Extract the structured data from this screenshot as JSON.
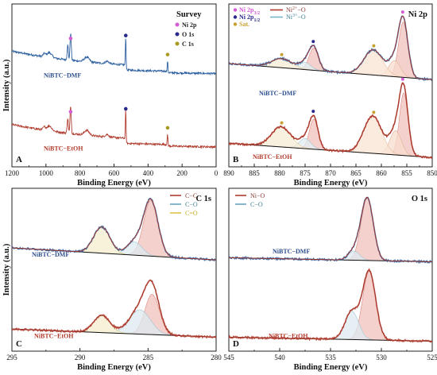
{
  "chart_data": [
    {
      "type": "line",
      "panel": "A",
      "title": "Survey",
      "xlabel": "Binding Energy (eV)",
      "ylabel": "Intensity (a.u.)",
      "xlim": [
        1200,
        0
      ],
      "xticks": [
        1200,
        1000,
        800,
        600,
        400,
        200,
        0
      ],
      "legend": [
        {
          "label": "Ni 2p",
          "color": "#d45bd4"
        },
        {
          "label": "O 1s",
          "color": "#2b2a8c"
        },
        {
          "label": "C 1s",
          "color": "#a89a1e"
        }
      ],
      "markers": [
        {
          "series": 0,
          "x": 855,
          "color": "#d45bd4"
        },
        {
          "series": 0,
          "x": 531,
          "color": "#2b2a8c"
        },
        {
          "series": 0,
          "x": 285,
          "color": "#a89a1e"
        },
        {
          "series": 1,
          "x": 855,
          "color": "#d45bd4"
        },
        {
          "series": 1,
          "x": 531,
          "color": "#2b2a8c"
        },
        {
          "series": 1,
          "x": 285,
          "color": "#a89a1e"
        }
      ],
      "series": [
        {
          "name": "NiBTC−DMF",
          "color": "#2c5fa0",
          "offset": 1.0
        },
        {
          "name": "NiBTC−EtOH",
          "color": "#b13c2e",
          "offset": 0.0
        }
      ]
    },
    {
      "type": "line",
      "panel": "B",
      "title": "Ni 2p",
      "xlabel": "Binding Energy (eV)",
      "ylabel": "",
      "xlim": [
        890,
        850
      ],
      "xticks": [
        890,
        885,
        880,
        875,
        870,
        865,
        860,
        855,
        850
      ],
      "legend": [
        {
          "label": "Ni 2p",
          "sub": "3/2",
          "color": "#d45bd4",
          "marker": "dot"
        },
        {
          "label": "Ni 2p",
          "sub": "1/2",
          "color": "#2b2a8c",
          "marker": "dot"
        },
        {
          "label": "Sat.",
          "color": "#c8a032",
          "marker": "dot"
        },
        {
          "label": "Ni",
          "sup": "2+",
          "tail": "−O",
          "color": "#b13c2e",
          "marker": "line"
        },
        {
          "label": "Ni",
          "sup": "3+",
          "tail": "−O",
          "color": "#7ab6c9",
          "marker": "line"
        }
      ],
      "markers": [
        {
          "series": 0,
          "x": 855.8,
          "color": "#d45bd4"
        },
        {
          "series": 0,
          "x": 873.4,
          "color": "#2b2a8c"
        },
        {
          "series": 0,
          "x": 861.5,
          "color": "#c8a032"
        },
        {
          "series": 0,
          "x": 879.6,
          "color": "#c8a032"
        },
        {
          "series": 1,
          "x": 855.8,
          "color": "#d45bd4"
        },
        {
          "series": 1,
          "x": 873.4,
          "color": "#2b2a8c"
        },
        {
          "series": 1,
          "x": 861.5,
          "color": "#c8a032"
        },
        {
          "series": 1,
          "x": 879.6,
          "color": "#c8a032"
        }
      ],
      "series": [
        {
          "name": "NiBTC−DMF",
          "color": "#2c5fa0",
          "baseline": [
            [
              890,
              0.3
            ],
            [
              850,
              0.14
            ]
          ],
          "peaks": [
            {
              "label": "Ni2+−O",
              "center": 855.7,
              "height": 0.55,
              "width": 1.3,
              "fill": "#f2c2bd",
              "stroke": "#d98a80"
            },
            {
              "label": "Ni3+−O",
              "center": 857.4,
              "height": 0.16,
              "width": 1.6,
              "fill": "#f7dccc",
              "stroke": "#e0b39a"
            },
            {
              "label": "Sat.",
              "center": 861.6,
              "height": 0.25,
              "width": 2.6,
              "fill": "#f9e4d4",
              "stroke": "#e4bfa0"
            },
            {
              "label": "Ni2+−O",
              "center": 873.3,
              "height": 0.22,
              "width": 1.3,
              "fill": "#f2c2bd",
              "stroke": "#d98a80"
            },
            {
              "label": "Ni3+−O",
              "center": 875.0,
              "height": 0.07,
              "width": 1.6,
              "fill": "#e2eff3",
              "stroke": "#9fc6d3"
            },
            {
              "label": "Sat.",
              "center": 879.6,
              "height": 0.09,
              "width": 2.8,
              "fill": "#f7ecd6",
              "stroke": "#e2c896"
            }
          ]
        },
        {
          "name": "NiBTC−EtOH",
          "color": "#b13c2e",
          "baseline": [
            [
              890,
              0.3
            ],
            [
              850,
              0.16
            ]
          ],
          "peaks": [
            {
              "label": "Ni2+−O",
              "center": 855.6,
              "height": 0.62,
              "width": 1.2,
              "fill": "#f2c2bd",
              "stroke": "#d98a80"
            },
            {
              "label": "Ni3+−O",
              "center": 857.2,
              "height": 0.24,
              "width": 1.6,
              "fill": "#f7dccc",
              "stroke": "#e0b39a"
            },
            {
              "label": "Sat.",
              "center": 861.7,
              "height": 0.37,
              "width": 2.5,
              "fill": "#f9e4d4",
              "stroke": "#e4bfa0"
            },
            {
              "label": "Ni2+−O",
              "center": 873.3,
              "height": 0.3,
              "width": 1.2,
              "fill": "#f2c2bd",
              "stroke": "#d98a80"
            },
            {
              "label": "Ni3+−O",
              "center": 875.0,
              "height": 0.1,
              "width": 1.6,
              "fill": "#e2eff3",
              "stroke": "#9fc6d3"
            },
            {
              "label": "Sat.",
              "center": 879.7,
              "height": 0.2,
              "width": 2.7,
              "fill": "#f7ecd6",
              "stroke": "#e2c896"
            }
          ]
        }
      ]
    },
    {
      "type": "line",
      "panel": "C",
      "title": "C 1s",
      "xlabel": "Binding Energy (eV)",
      "ylabel": "Intensity (a.u.)",
      "xlim": [
        295,
        280
      ],
      "xticks": [
        295,
        290,
        285,
        280
      ],
      "legend": [
        {
          "label": "C−C",
          "color": "#b13c2e"
        },
        {
          "label": "C−O",
          "color": "#6aa5bd"
        },
        {
          "label": "C=O",
          "color": "#e0c24a"
        }
      ],
      "series": [
        {
          "name": "NiBTC−DMF",
          "color": "#2c5fa0",
          "baseline": [
            [
              295,
              0.3
            ],
            [
              280,
              0.18
            ]
          ],
          "peaks": [
            {
              "label": "C−C",
              "center": 284.8,
              "height": 0.55,
              "width": 0.75,
              "fill": "#f2c2bd",
              "stroke": "#d98a80"
            },
            {
              "label": "C−O",
              "center": 286.0,
              "height": 0.13,
              "width": 0.8,
              "fill": "#dceaf0",
              "stroke": "#9fc6d3"
            },
            {
              "label": "C=O",
              "center": 288.4,
              "height": 0.26,
              "width": 0.85,
              "fill": "#f4eecc",
              "stroke": "#dccf86"
            }
          ]
        },
        {
          "name": "NiBTC−EtOH",
          "color": "#b13c2e",
          "baseline": [
            [
              295,
              0.27
            ],
            [
              280,
              0.19
            ]
          ],
          "peaks": [
            {
              "label": "C−C",
              "center": 284.7,
              "height": 0.4,
              "width": 0.75,
              "fill": "#f2c2bd",
              "stroke": "#d98a80"
            },
            {
              "label": "C−O",
              "center": 285.6,
              "height": 0.24,
              "width": 1.1,
              "fill": "#dceaf0",
              "stroke": "#9fc6d3"
            },
            {
              "label": "C=O",
              "center": 288.4,
              "height": 0.17,
              "width": 0.85,
              "fill": "#f4eecc",
              "stroke": "#dccf86"
            }
          ]
        }
      ]
    },
    {
      "type": "line",
      "panel": "D",
      "title": "O 1s",
      "xlabel": "Binding Energy (eV)",
      "ylabel": "",
      "xlim": [
        545,
        525
      ],
      "xticks": [
        545,
        540,
        535,
        530,
        525
      ],
      "legend": [
        {
          "label": "Ni−O",
          "color": "#b13c2e"
        },
        {
          "label": "C−O",
          "color": "#6aa5bd"
        }
      ],
      "series": [
        {
          "name": "NiBTC−DMF",
          "color": "#2c5fa0",
          "baseline": [
            [
              545,
              0.17
            ],
            [
              525,
              0.13
            ]
          ],
          "peaks": [
            {
              "label": "Ni−O",
              "center": 531.4,
              "height": 0.62,
              "width": 0.85,
              "fill": "#f2c2bd",
              "stroke": "#d98a80"
            },
            {
              "label": "C−O",
              "center": 532.7,
              "height": 0.09,
              "width": 0.8,
              "fill": "#dceaf0",
              "stroke": "#9fc6d3"
            }
          ]
        },
        {
          "name": "NiBTC−EtOH",
          "color": "#b13c2e",
          "baseline": [
            [
              545,
              0.19
            ],
            [
              525,
              0.15
            ]
          ],
          "peaks": [
            {
              "label": "Ni−O",
              "center": 531.2,
              "height": 0.68,
              "width": 0.9,
              "fill": "#f2c2bd",
              "stroke": "#d98a80"
            },
            {
              "label": "C−O",
              "center": 532.9,
              "height": 0.28,
              "width": 0.95,
              "fill": "#dceaf0",
              "stroke": "#9fc6d3"
            }
          ]
        }
      ]
    }
  ]
}
